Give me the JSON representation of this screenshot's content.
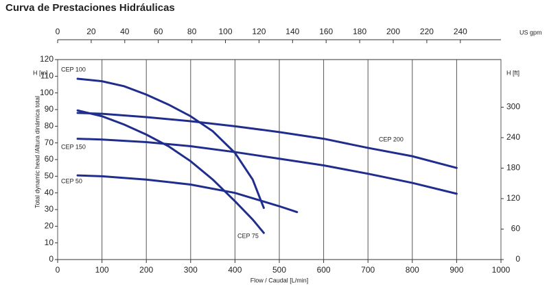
{
  "chart_data": {
    "type": "line",
    "title": "Curva de Prestaciones Hidráulicas",
    "xlabel": "Flow / Caudal [L/min]",
    "ylabel": "Total dynamic head /Altura dinámica total",
    "ylabel_top": "H [m]",
    "y2label_top": "H [ft]",
    "x2label": "US gpm",
    "xlim": [
      0,
      1000
    ],
    "xticks": [
      0,
      100,
      200,
      300,
      400,
      500,
      600,
      700,
      800,
      900,
      1000
    ],
    "ylim": [
      0,
      120
    ],
    "yticks": [
      0,
      10,
      20,
      30,
      40,
      50,
      60,
      70,
      80,
      90,
      100,
      110,
      120
    ],
    "y2lim": [
      0,
      393.7
    ],
    "y2ticks": [
      0,
      60,
      120,
      180,
      240,
      300
    ],
    "x2lim": [
      0,
      264.2
    ],
    "x2ticks": [
      0,
      20,
      40,
      60,
      80,
      100,
      120,
      140,
      160,
      180,
      200,
      220,
      240
    ],
    "grid": true,
    "series": [
      {
        "name": "CEP 100",
        "color": "#1f2e8c",
        "x": [
          45,
          100,
          150,
          200,
          250,
          300,
          350,
          400,
          440,
          465
        ],
        "values": [
          108.5,
          107,
          104,
          99,
          93,
          86,
          77,
          64,
          48,
          31
        ]
      },
      {
        "name": "CEP 75",
        "color": "#1f2e8c",
        "x": [
          45,
          100,
          150,
          200,
          250,
          300,
          350,
          400,
          440,
          465
        ],
        "values": [
          89.5,
          86,
          81,
          75,
          68,
          59,
          48,
          35,
          24,
          16
        ]
      },
      {
        "name": "CEP 200",
        "color": "#1f2e8c",
        "x": [
          45,
          100,
          200,
          300,
          400,
          500,
          600,
          700,
          800,
          900
        ],
        "values": [
          88,
          87.5,
          85.5,
          83,
          80,
          76.5,
          72.5,
          67,
          62,
          55
        ]
      },
      {
        "name": "CEP 150",
        "color": "#1f2e8c",
        "x": [
          45,
          100,
          200,
          300,
          400,
          500,
          600,
          700,
          800,
          900
        ],
        "values": [
          72.5,
          72,
          70.5,
          68,
          64.5,
          60.5,
          56.5,
          51.5,
          46,
          39.5
        ]
      },
      {
        "name": "CEP 50",
        "color": "#1f2e8c",
        "x": [
          45,
          100,
          200,
          300,
          400,
          450,
          500,
          540
        ],
        "values": [
          50.5,
          50,
          48,
          45,
          40,
          36,
          32,
          28.5
        ]
      }
    ]
  }
}
